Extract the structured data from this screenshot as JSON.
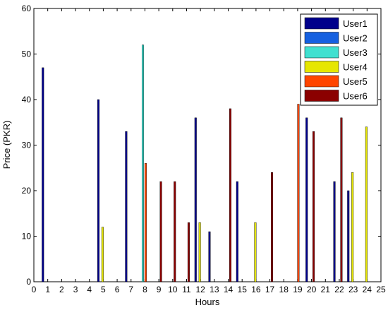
{
  "chart_data": {
    "type": "bar",
    "xlabel": "Hours",
    "ylabel": "Price (PKR)",
    "xlim": [
      0,
      25
    ],
    "ylim": [
      0,
      60
    ],
    "xticks": [
      0,
      1,
      2,
      3,
      4,
      5,
      6,
      7,
      8,
      9,
      10,
      11,
      12,
      13,
      14,
      15,
      16,
      17,
      18,
      19,
      20,
      21,
      22,
      23,
      24,
      25
    ],
    "yticks": [
      0,
      10,
      20,
      30,
      40,
      50,
      60
    ],
    "grid": false,
    "legend_position": "top-right",
    "series": [
      {
        "name": "User1",
        "color": "#00008b",
        "x": [
          0.65,
          4.65,
          6.65,
          11.65,
          12.65,
          14.65,
          19.65,
          21.65,
          22.65
        ],
        "values": [
          47,
          40,
          33,
          36,
          11,
          22,
          36,
          22,
          20
        ]
      },
      {
        "name": "User2",
        "color": "#1560e0",
        "x": [],
        "values": []
      },
      {
        "name": "User3",
        "color": "#40e0d0",
        "x": [
          7.85
        ],
        "values": [
          52
        ]
      },
      {
        "name": "User4",
        "color": "#e6e600",
        "x": [
          4.95,
          11.95,
          15.95,
          22.95,
          23.95
        ],
        "values": [
          12,
          13,
          13,
          24,
          34
        ]
      },
      {
        "name": "User5",
        "color": "#ff4500",
        "x": [
          8.05,
          19.05
        ],
        "values": [
          26,
          39
        ]
      },
      {
        "name": "User6",
        "color": "#8b0000",
        "x": [
          9.15,
          10.15,
          11.15,
          14.15,
          17.15,
          20.15,
          22.15
        ],
        "values": [
          22,
          22,
          13,
          38,
          24,
          33,
          36
        ]
      }
    ]
  }
}
